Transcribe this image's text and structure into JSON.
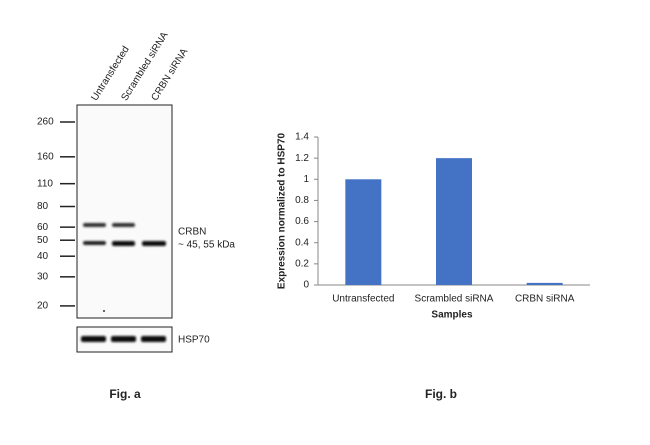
{
  "blot": {
    "lanes": [
      "Untransfected",
      "Scrambled siRNA",
      "CRBN siRNA"
    ],
    "markers": [
      260,
      160,
      110,
      80,
      60,
      50,
      40,
      30,
      20
    ],
    "target_label": "CRBN",
    "target_size": "~ 45, 55 kDa",
    "loading_label": "HSP70",
    "caption": "Fig. a"
  },
  "chart_data": {
    "type": "bar",
    "caption": "Fig. b",
    "y_label": "Expression normalized to HSP70",
    "x_label": "Samples",
    "categories": [
      "Untransfected",
      "Scrambled siRNA",
      "CRBN siRNA"
    ],
    "values": [
      1,
      1.2,
      0.02
    ],
    "color": "#4472c4",
    "ylim": [
      0,
      1.4
    ],
    "yticks": [
      0,
      0.2,
      0.4,
      0.6,
      0.8,
      1,
      1.2,
      1.4
    ]
  }
}
